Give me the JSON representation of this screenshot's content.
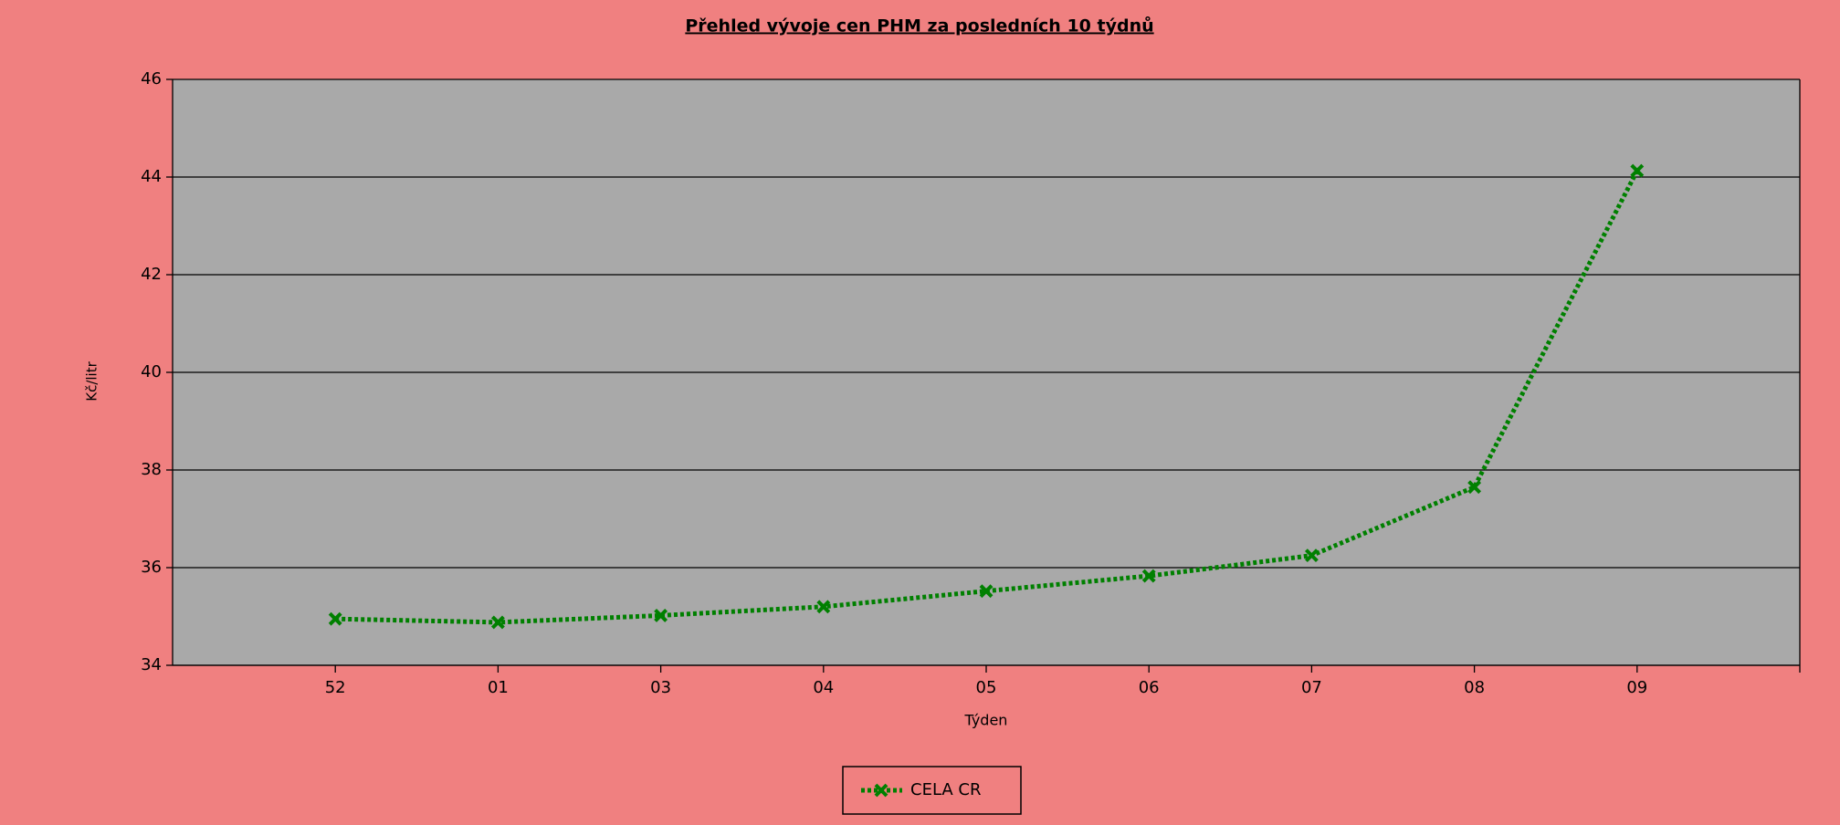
{
  "chart_data": {
    "type": "line",
    "title": "Přehled vývoje cen PHM za posledních 10 týdnů",
    "x_label": "Týden",
    "y_label": "Kč/litr",
    "categories": [
      "52",
      "01",
      "03",
      "04",
      "05",
      "06",
      "07",
      "08",
      "09"
    ],
    "series": [
      {
        "name": "CELA CR",
        "color": "#008000",
        "values": [
          34.95,
          34.88,
          35.02,
          35.2,
          35.52,
          35.83,
          36.25,
          37.65,
          44.13
        ]
      }
    ],
    "ylim": [
      34,
      46
    ],
    "yticks": [
      34,
      36,
      38,
      40,
      42,
      44,
      46
    ],
    "grid": true
  }
}
